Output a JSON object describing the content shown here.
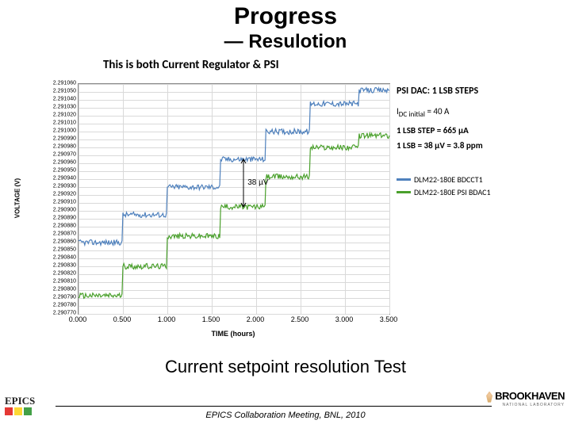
{
  "title": "Progress",
  "subtitle": "— Resulotion",
  "chart_title": "This is both Current Regulator & PSI",
  "caption": "Current setpoint resolution Test",
  "footer_text": "EPICS Collaboration Meeting, BNL, 2010",
  "epics_label": "EPICS",
  "epics_block_colors": [
    "#e53935",
    "#fdd835",
    "#43a047"
  ],
  "bnl_top": "BROOKHAVEN",
  "bnl_bottom": "NATIONAL LABORATORY",
  "right_block": {
    "heading": "PSI DAC:  1 LSB STEPS",
    "idc_label": "I",
    "idc_sub": "DC initial",
    "idc_value": " = 40 A",
    "step_line": "1 LSB STEP = 665 µA",
    "lsb_line": "1 LSB = 38 µV = 3.8 ppm"
  },
  "annotation_38uV": "38 µV",
  "y_axis": {
    "label": "VOLTAGE (V)",
    "ticks": [
      "2.291060",
      "2.291050",
      "2.291040",
      "2.291030",
      "2.291020",
      "2.291010",
      "2.291000",
      "2.290990",
      "2.290980",
      "2.290970",
      "2.290960",
      "2.290950",
      "2.290940",
      "2.290930",
      "2.290920",
      "2.290910",
      "2.290900",
      "2.290890",
      "2.290880",
      "2.290870",
      "2.290860",
      "2.290850",
      "2.290840",
      "2.290830",
      "2.290820",
      "2.290810",
      "2.290800",
      "2.290790",
      "2.290780",
      "2.290770"
    ],
    "min": 2.29077,
    "max": 2.29106,
    "step": 1e-05
  },
  "x_axis": {
    "label": "TIME (hours)",
    "ticks": [
      "0.000",
      "0.500",
      "1.000",
      "1.500",
      "2.000",
      "2.500",
      "3.000",
      "3.500"
    ],
    "min": 0.0,
    "max": 3.5,
    "step": 0.5
  },
  "series": [
    {
      "name": "DLM22-180E BDCCT1",
      "color": "#4f81bd",
      "line_width": 1.2,
      "noise_amp_v": 3.5e-06,
      "steps": [
        {
          "t_start": 0.0,
          "t_end": 0.5,
          "base_v": 2.29086
        },
        {
          "t_start": 0.5,
          "t_end": 1.0,
          "base_v": 2.290895
        },
        {
          "t_start": 1.0,
          "t_end": 1.6,
          "base_v": 2.29093
        },
        {
          "t_start": 1.6,
          "t_end": 2.1,
          "base_v": 2.290965
        },
        {
          "t_start": 2.1,
          "t_end": 2.6,
          "base_v": 2.291
        },
        {
          "t_start": 2.6,
          "t_end": 3.15,
          "base_v": 2.291035
        },
        {
          "t_start": 3.15,
          "t_end": 3.5,
          "base_v": 2.291052
        }
      ]
    },
    {
      "name": "DLM22-180E PSI BDAC1",
      "color": "#4aa02c",
      "line_width": 1.2,
      "noise_amp_v": 3.5e-06,
      "steps": [
        {
          "t_start": 0.0,
          "t_end": 0.5,
          "base_v": 2.290793
        },
        {
          "t_start": 0.5,
          "t_end": 1.0,
          "base_v": 2.29083
        },
        {
          "t_start": 1.0,
          "t_end": 1.6,
          "base_v": 2.290868
        },
        {
          "t_start": 1.6,
          "t_end": 2.1,
          "base_v": 2.290905
        },
        {
          "t_start": 2.1,
          "t_end": 2.6,
          "base_v": 2.290943
        },
        {
          "t_start": 2.6,
          "t_end": 3.15,
          "base_v": 2.29098
        },
        {
          "t_start": 3.15,
          "t_end": 3.5,
          "base_v": 2.290995
        }
      ]
    }
  ],
  "grid_color": "#d9d9d9",
  "background_color": "#ffffff",
  "plot_border_color": "#888888"
}
